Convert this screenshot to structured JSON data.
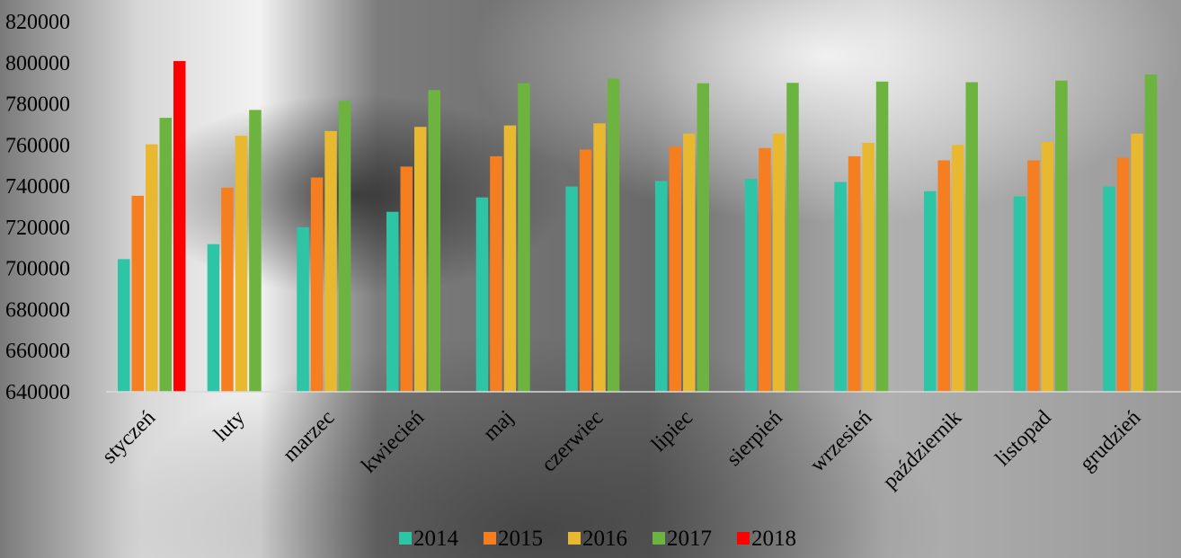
{
  "chart_data": {
    "type": "bar",
    "title": "",
    "xlabel": "",
    "ylabel": "",
    "ylim": [
      640000,
      820000
    ],
    "yticks": [
      640000,
      660000,
      680000,
      700000,
      720000,
      740000,
      760000,
      780000,
      800000,
      820000
    ],
    "grid": false,
    "legend_position": "bottom",
    "categories": [
      "styczeń",
      "luty",
      "marzec",
      "kwiecień",
      "maj",
      "czerwiec",
      "lipiec",
      "sierpień",
      "wrzesień",
      "październik",
      "listopad",
      "grudzień"
    ],
    "series": [
      {
        "name": "2014",
        "color": "#2ec4a6",
        "values": [
          704500,
          711800,
          720000,
          727500,
          734500,
          739800,
          742500,
          743500,
          742000,
          737500,
          735000,
          739800
        ]
      },
      {
        "name": "2015",
        "color": "#f57f20",
        "values": [
          735300,
          739200,
          744200,
          749500,
          754500,
          757800,
          759200,
          758500,
          754500,
          752500,
          752500,
          753800
        ]
      },
      {
        "name": "2016",
        "color": "#e8b830",
        "values": [
          760300,
          764500,
          766800,
          768800,
          769500,
          770500,
          765500,
          765500,
          761000,
          760000,
          761500,
          765500
        ]
      },
      {
        "name": "2017",
        "color": "#6db33f",
        "values": [
          773200,
          777000,
          781400,
          786700,
          790000,
          792200,
          790000,
          790200,
          790800,
          790500,
          791300,
          794300
        ]
      },
      {
        "name": "2018",
        "color": "#ff0000",
        "values": [
          800800,
          null,
          null,
          null,
          null,
          null,
          null,
          null,
          null,
          null,
          null,
          null
        ]
      }
    ]
  }
}
